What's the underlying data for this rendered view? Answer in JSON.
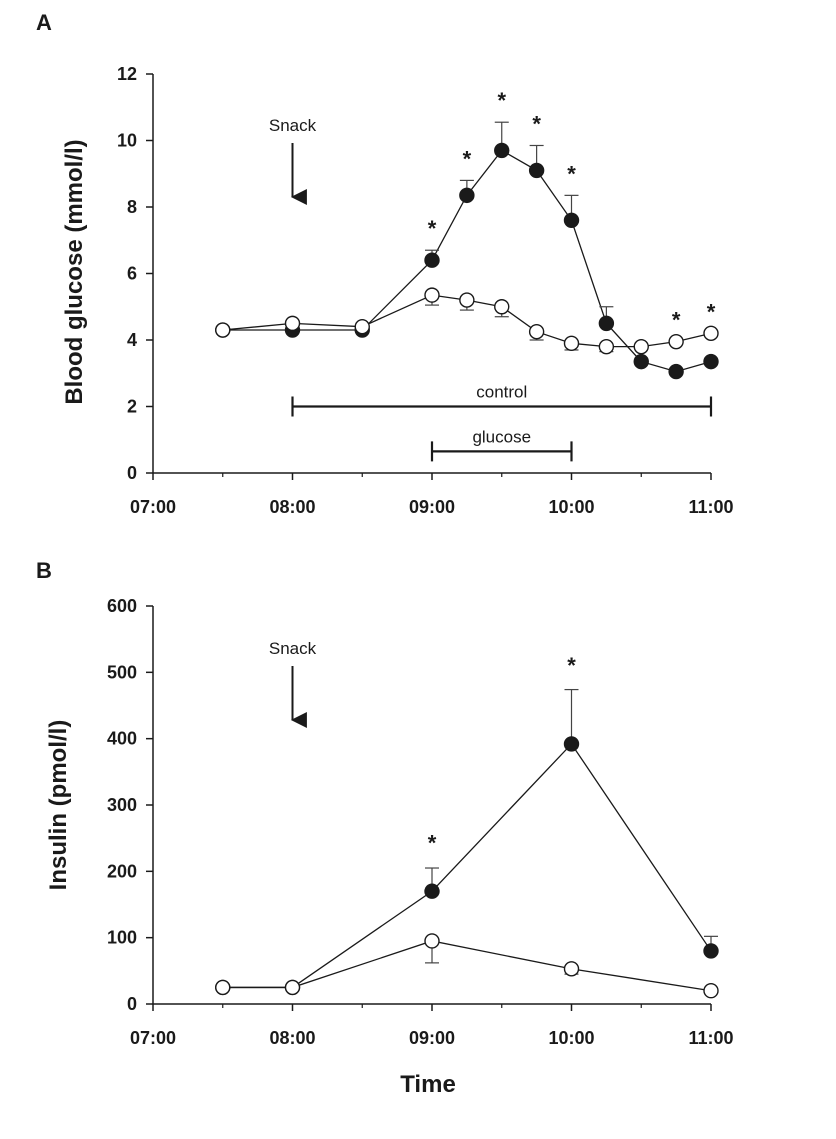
{
  "chart_data": [
    {
      "panel_label": "A",
      "type": "line",
      "ylabel": "Blood glucose (mmol/l)",
      "xlabel": "",
      "x_ticks": [
        "07:00",
        "08:00",
        "09:00",
        "10:00",
        "11:00"
      ],
      "xlim_hours": [
        7,
        11
      ],
      "ylim": [
        0,
        12
      ],
      "y_ticks": [
        "0",
        "2",
        "4",
        "6",
        "8",
        "10",
        "12"
      ],
      "grid": false,
      "series": [
        {
          "marker": "filled-circle",
          "color": "#1a1a1a",
          "points": [
            {
              "x": "07:30",
              "y": 4.3,
              "err": 0
            },
            {
              "x": "08:00",
              "y": 4.3,
              "err": 0
            },
            {
              "x": "08:30",
              "y": 4.3,
              "err": 0
            },
            {
              "x": "09:00",
              "y": 6.4,
              "err": 0.3
            },
            {
              "x": "09:15",
              "y": 8.35,
              "err": 0.45
            },
            {
              "x": "09:30",
              "y": 9.7,
              "err": 0.85
            },
            {
              "x": "09:45",
              "y": 9.1,
              "err": 0.75
            },
            {
              "x": "10:00",
              "y": 7.6,
              "err": 0.75
            },
            {
              "x": "10:15",
              "y": 4.5,
              "err": 0.5
            },
            {
              "x": "10:30",
              "y": 3.35,
              "err": 0
            },
            {
              "x": "10:45",
              "y": 3.05,
              "err": 0
            },
            {
              "x": "11:00",
              "y": 3.35,
              "err": 0
            }
          ]
        },
        {
          "marker": "open-circle",
          "color": "#1a1a1a",
          "points": [
            {
              "x": "07:30",
              "y": 4.3,
              "err": 0
            },
            {
              "x": "08:00",
              "y": 4.5,
              "err": 0
            },
            {
              "x": "08:30",
              "y": 4.4,
              "err": 0
            },
            {
              "x": "09:00",
              "y": 5.35,
              "err": 0.3
            },
            {
              "x": "09:15",
              "y": 5.2,
              "err": 0.3
            },
            {
              "x": "09:30",
              "y": 5.0,
              "err": 0.3
            },
            {
              "x": "09:45",
              "y": 4.25,
              "err": 0.25
            },
            {
              "x": "10:00",
              "y": 3.9,
              "err": 0.2
            },
            {
              "x": "10:15",
              "y": 3.8,
              "err": 0.15
            },
            {
              "x": "10:30",
              "y": 3.8,
              "err": 0
            },
            {
              "x": "10:45",
              "y": 3.95,
              "err": 0
            },
            {
              "x": "11:00",
              "y": 4.2,
              "err": 0
            }
          ]
        }
      ],
      "significance": [
        {
          "x": "09:00",
          "y": 6.7
        },
        {
          "x": "09:15",
          "y": 8.8
        },
        {
          "x": "09:30",
          "y": 10.55
        },
        {
          "x": "09:45",
          "y": 9.85
        },
        {
          "x": "10:00",
          "y": 8.35
        },
        {
          "x": "10:45",
          "y": 3.95
        },
        {
          "x": "11:00",
          "y": 4.2
        }
      ],
      "star_text": "*",
      "annotations": {
        "snack": {
          "text": "Snack",
          "x": "08:00"
        },
        "intervals": [
          {
            "label": "control",
            "start": "08:00",
            "end": "11:00",
            "y": 2.0
          },
          {
            "label": "glucose",
            "start": "09:00",
            "end": "10:00",
            "y": 0.65
          }
        ]
      }
    },
    {
      "panel_label": "B",
      "type": "line",
      "ylabel": "Insulin (pmol/l)",
      "xlabel": "Time",
      "x_ticks": [
        "07:00",
        "08:00",
        "09:00",
        "10:00",
        "11:00"
      ],
      "xlim_hours": [
        7,
        11
      ],
      "ylim": [
        0,
        600
      ],
      "y_ticks": [
        "0",
        "100",
        "200",
        "300",
        "400",
        "500",
        "600"
      ],
      "grid": false,
      "series": [
        {
          "marker": "filled-circle",
          "color": "#1a1a1a",
          "points": [
            {
              "x": "07:30",
              "y": 25,
              "err": 0
            },
            {
              "x": "08:00",
              "y": 25,
              "err": 0
            },
            {
              "x": "09:00",
              "y": 170,
              "err": 35
            },
            {
              "x": "10:00",
              "y": 392,
              "err": 82
            },
            {
              "x": "11:00",
              "y": 80,
              "err": 22
            }
          ]
        },
        {
          "marker": "open-circle",
          "color": "#1a1a1a",
          "points": [
            {
              "x": "07:30",
              "y": 25,
              "err": 0
            },
            {
              "x": "08:00",
              "y": 25,
              "err": 0
            },
            {
              "x": "09:00",
              "y": 95,
              "err": 33
            },
            {
              "x": "10:00",
              "y": 53,
              "err": 8
            },
            {
              "x": "11:00",
              "y": 20,
              "err": 0
            }
          ]
        }
      ],
      "significance": [
        {
          "x": "09:00",
          "y": 210
        },
        {
          "x": "10:00",
          "y": 478
        }
      ],
      "star_text": "*",
      "annotations": {
        "snack": {
          "text": "Snack",
          "x": "08:00"
        },
        "intervals": []
      }
    }
  ]
}
